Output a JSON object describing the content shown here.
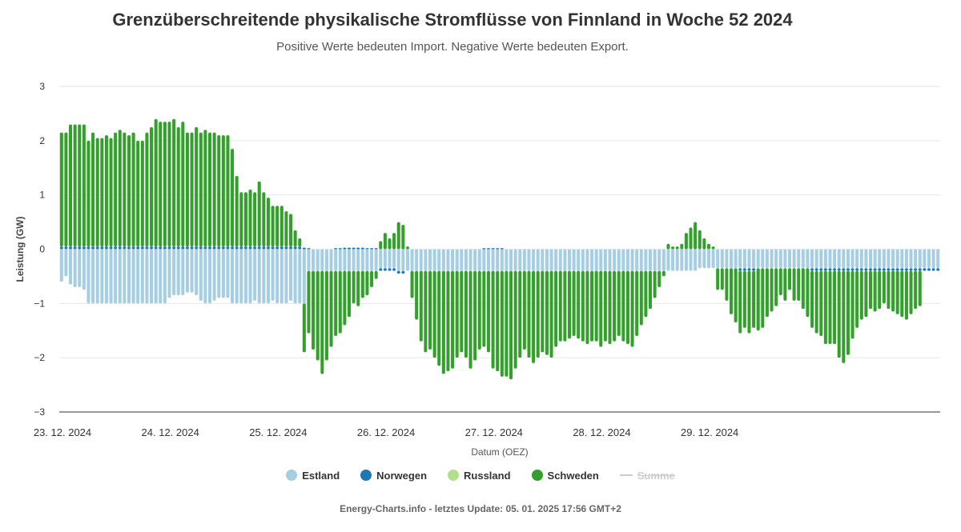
{
  "title": "Grenzüberschreitende physikalische Stromflüsse von Finnland in Woche 52 2024",
  "subtitle": "Positive Werte bedeuten Import. Negative Werte bedeuten Export.",
  "credit": "Energy-Charts.info - letztes Update: 05. 01. 2025 17:56 GMT+2",
  "chart_data": {
    "type": "bar",
    "stacked": true,
    "ylabel": "Leistung (GW)",
    "xlabel": "Datum (OEZ)",
    "ylim": [
      -3,
      3
    ],
    "yticks": [
      "3",
      "2",
      "1",
      "0",
      "−1",
      "−2",
      "−3"
    ],
    "x_ticks": [
      "23. 12. 2024",
      "24. 12. 2024",
      "25. 12. 2024",
      "26. 12. 2024",
      "27. 12. 2024",
      "28. 12. 2024",
      "29. 12. 2024"
    ],
    "grid": true,
    "legend_position": "bottom-center",
    "series": [
      {
        "name": "Estland",
        "color": "#a6cee3",
        "values": [
          -0.6,
          -0.5,
          -0.65,
          -0.7,
          -0.7,
          -0.75,
          -1,
          -1,
          -1,
          -1,
          -1,
          -1,
          -1,
          -1,
          -1,
          -1,
          -1,
          -1,
          -1,
          -1,
          -1,
          -1,
          -1,
          -1,
          -0.9,
          -0.85,
          -0.85,
          -0.85,
          -0.8,
          -0.8,
          -0.85,
          -0.95,
          -1,
          -1,
          -0.95,
          -0.9,
          -0.9,
          -0.9,
          -1,
          -1,
          -1,
          -1,
          -1,
          -0.95,
          -1,
          -1,
          -1,
          -0.95,
          -1,
          -1,
          -1,
          -0.95,
          -1,
          -1,
          -1,
          -0.4,
          -0.4,
          -0.4,
          -0.4,
          -0.4,
          -0.4,
          -0.4,
          -0.4,
          -0.4,
          -0.4,
          -0.4,
          -0.4,
          -0.4,
          -0.4,
          -0.4,
          -0.4,
          -0.35,
          -0.35,
          -0.35,
          -0.35,
          -0.4,
          -0.4,
          -0.4,
          -0.4,
          -0.4,
          -0.4,
          -0.4,
          -0.4,
          -0.4,
          -0.4,
          -0.4,
          -0.4,
          -0.4,
          -0.4,
          -0.4,
          -0.4,
          -0.4,
          -0.4,
          -0.4,
          -0.4,
          -0.4,
          -0.4,
          -0.4,
          -0.4,
          -0.4,
          -0.4,
          -0.4,
          -0.4,
          -0.4,
          -0.4,
          -0.4,
          -0.4,
          -0.4,
          -0.4,
          -0.4,
          -0.4,
          -0.4,
          -0.4,
          -0.4,
          -0.4,
          -0.4,
          -0.4,
          -0.4,
          -0.4,
          -0.4,
          -0.4,
          -0.4,
          -0.4,
          -0.4,
          -0.4,
          -0.4,
          -0.4,
          -0.4,
          -0.4,
          -0.4,
          -0.4,
          -0.4,
          -0.4,
          -0.4,
          -0.4,
          -0.4,
          -0.4,
          -0.4,
          -0.4,
          -0.4,
          -0.4,
          -0.4,
          -0.35,
          -0.35,
          -0.35,
          -0.35,
          -0.35,
          -0.35,
          -0.35,
          -0.35,
          -0.35,
          -0.35,
          -0.35,
          -0.35,
          -0.35,
          -0.35,
          -0.35,
          -0.35,
          -0.35,
          -0.35,
          -0.35,
          -0.35,
          -0.35,
          -0.35,
          -0.35,
          -0.35,
          -0.35,
          -0.35,
          -0.35,
          -0.35,
          -0.35,
          -0.35,
          -0.35,
          -0.35,
          -0.35,
          -0.35,
          -0.35,
          -0.35,
          -0.35,
          -0.35,
          -0.35,
          -0.35,
          -0.35,
          -0.35,
          -0.35,
          -0.35,
          -0.35,
          -0.35,
          -0.35,
          -0.35,
          -0.35,
          -0.35,
          -0.35,
          -0.35,
          -0.35,
          -0.35
        ],
        "note": "Estonia"
      },
      {
        "name": "Norwegen",
        "color": "#1f78b4",
        "values": [
          0.05,
          0.05,
          0.05,
          0.05,
          0.05,
          0.05,
          0.05,
          0.05,
          0.05,
          0.05,
          0.05,
          0.05,
          0.05,
          0.05,
          0.05,
          0.05,
          0.05,
          0.05,
          0.05,
          0.05,
          0.05,
          0.05,
          0.05,
          0.05,
          0.05,
          0.05,
          0.05,
          0.05,
          0.05,
          0.05,
          0.05,
          0.05,
          0.05,
          0.05,
          0.05,
          0.05,
          0.05,
          0.05,
          0.05,
          0.05,
          0.05,
          0.05,
          0.05,
          0.05,
          0.05,
          0.05,
          0.05,
          0.05,
          0.05,
          0.05,
          0.05,
          0.05,
          0.05,
          0.05,
          0.03,
          0.02,
          0.0,
          0.0,
          0.0,
          0.0,
          0.0,
          0.02,
          0.02,
          0.03,
          0.03,
          0.03,
          0.03,
          0.03,
          0.02,
          0.02,
          0.02,
          -0.05,
          -0.05,
          -0.05,
          -0.05,
          -0.05,
          -0.05,
          0.0,
          0.0,
          0.0,
          0.0,
          0.0,
          0.0,
          0.0,
          0.0,
          0.0,
          0.0,
          0.0,
          0.0,
          0.0,
          0.0,
          0.0,
          0.0,
          0.0,
          0.02,
          0.02,
          0.02,
          0.02,
          0.02,
          0.0,
          0.0,
          0.0,
          0.0,
          0.0,
          0.0,
          0.0,
          0.0,
          0.0,
          0.0,
          0.0,
          0.0,
          0.0,
          0.0,
          0.0,
          0.0,
          0.0,
          0.0,
          0.0,
          0.0,
          0.0,
          0.0,
          0.0,
          0.0,
          0.0,
          0.0,
          0.0,
          0.0,
          0.0,
          0.0,
          0.0,
          0.0,
          0.0,
          0.0,
          0.0,
          0.0,
          0.0,
          0.0,
          0.0,
          0.0,
          0.0,
          0.0,
          0.0,
          0.0,
          0.0,
          0.0,
          0.0,
          0.0,
          0.0,
          0.0,
          0.0,
          0.0,
          -0.05,
          -0.05,
          -0.05,
          -0.05,
          0.0,
          0.0,
          0.0,
          0.0,
          0.0,
          0.0,
          0.0,
          0.0,
          0.0,
          0.0,
          0.0,
          0.0,
          -0.05,
          -0.05,
          -0.05,
          -0.05,
          -0.05,
          -0.05,
          -0.05,
          -0.05,
          -0.05,
          -0.05,
          -0.05,
          -0.05,
          -0.05,
          -0.05,
          -0.05,
          -0.05,
          -0.05,
          -0.05,
          -0.05,
          -0.05,
          -0.05,
          -0.05,
          -0.05,
          -0.05,
          -0.05,
          -0.05,
          -0.05,
          -0.05,
          -0.05,
          -0.05,
          -0.05,
          -0.05,
          -0.05,
          -0.05,
          -0.05,
          -0.05,
          -0.05
        ],
        "note": "Norway"
      },
      {
        "name": "Russland",
        "color": "#b2df8a",
        "values": []
      },
      {
        "name": "Schweden",
        "color": "#33a02c",
        "values": [
          2.1,
          2.1,
          2.25,
          2.25,
          2.25,
          2.25,
          1.95,
          2.1,
          2.0,
          2.0,
          2.05,
          2.0,
          2.1,
          2.15,
          2.1,
          2.05,
          2.1,
          1.95,
          1.95,
          2.1,
          2.2,
          2.35,
          2.3,
          2.3,
          2.3,
          2.35,
          2.2,
          2.3,
          2.1,
          2.1,
          2.2,
          2.1,
          2.15,
          2.1,
          2.1,
          2.05,
          2.05,
          2.05,
          1.8,
          1.3,
          1.0,
          1.0,
          1.05,
          1.0,
          1.2,
          1.0,
          0.9,
          0.75,
          0.75,
          0.75,
          0.65,
          0.6,
          0.3,
          0.15,
          -0.9,
          -1.15,
          -1.45,
          -1.65,
          -1.9,
          -1.65,
          -1.4,
          -1.2,
          -1.15,
          -1.0,
          -0.85,
          -0.6,
          -0.65,
          -0.5,
          -0.45,
          -0.3,
          -0.15,
          0.15,
          0.3,
          0.2,
          0.3,
          0.5,
          0.45,
          0.05,
          -0.5,
          -0.9,
          -1.3,
          -1.5,
          -1.45,
          -1.6,
          -1.75,
          -1.9,
          -1.85,
          -1.8,
          -1.6,
          -1.5,
          -1.6,
          -1.8,
          -1.65,
          -1.45,
          -1.4,
          -1.5,
          -1.8,
          -1.85,
          -1.95,
          -1.95,
          -2.0,
          -1.8,
          -1.6,
          -1.45,
          -1.6,
          -1.7,
          -1.6,
          -1.5,
          -1.55,
          -1.6,
          -1.4,
          -1.3,
          -1.3,
          -1.25,
          -1.2,
          -1.25,
          -1.3,
          -1.35,
          -1.3,
          -1.3,
          -1.4,
          -1.3,
          -1.35,
          -1.3,
          -1.2,
          -1.3,
          -1.35,
          -1.4,
          -1.2,
          -1.0,
          -0.85,
          -0.7,
          -0.5,
          -0.3,
          -0.1,
          0.1,
          0.05,
          0.05,
          0.1,
          0.3,
          0.4,
          0.5,
          0.35,
          0.2,
          0.1,
          0.05,
          -0.4,
          -0.4,
          -0.6,
          -0.85,
          -1.0,
          -1.15,
          -1.05,
          -1.15,
          -1.05,
          -1.15,
          -1.1,
          -0.9,
          -0.8,
          -0.7,
          -0.5,
          -0.6,
          -0.4,
          -0.6,
          -0.6,
          -0.75,
          -0.9,
          -1.05,
          -1.15,
          -1.2,
          -1.35,
          -1.35,
          -1.35,
          -1.6,
          -1.7,
          -1.55,
          -1.25,
          -1.05,
          -0.9,
          -0.85,
          -0.7,
          -0.75,
          -0.7,
          -0.6,
          -0.7,
          -0.75,
          -0.8,
          -0.85,
          -0.9,
          -0.8,
          -0.7,
          -0.65
        ],
        "note": "Sweden"
      },
      {
        "name": "Summe",
        "color": "#cccccc",
        "hidden": true,
        "values": []
      }
    ]
  },
  "legend": [
    "Estland",
    "Norwegen",
    "Russland",
    "Schweden",
    "Summe"
  ]
}
